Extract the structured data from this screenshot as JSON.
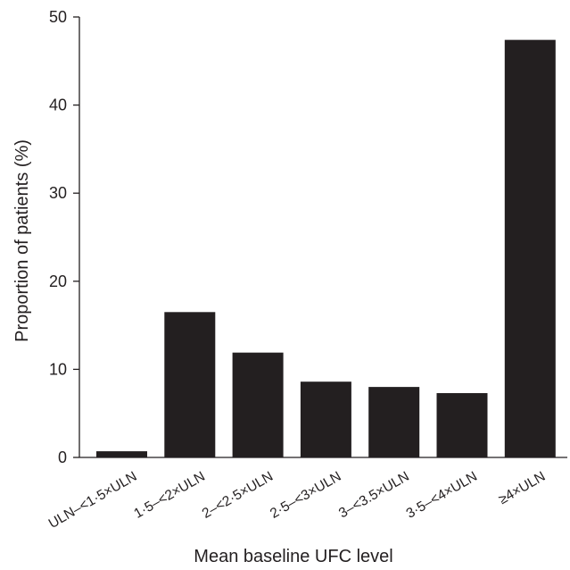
{
  "chart_data": {
    "type": "bar",
    "title": "",
    "xlabel": "Mean baseline UFC level",
    "ylabel": "Proportion of patients (%)",
    "ylim": [
      0,
      50
    ],
    "yticks": [
      0,
      10,
      20,
      30,
      40,
      50
    ],
    "categories": [
      "ULN–<1·5×ULN",
      "1·5–<2×ULN",
      "2–<2·5×ULN",
      "2·5–<3×ULN",
      "3–<3.5×ULN",
      "3·5–<4×ULN",
      "≥4×ULN"
    ],
    "values": [
      0.7,
      16.5,
      11.9,
      8.6,
      8.0,
      7.3,
      47.4
    ],
    "bar_color": "#231f20",
    "grid": false,
    "legend": "none"
  }
}
